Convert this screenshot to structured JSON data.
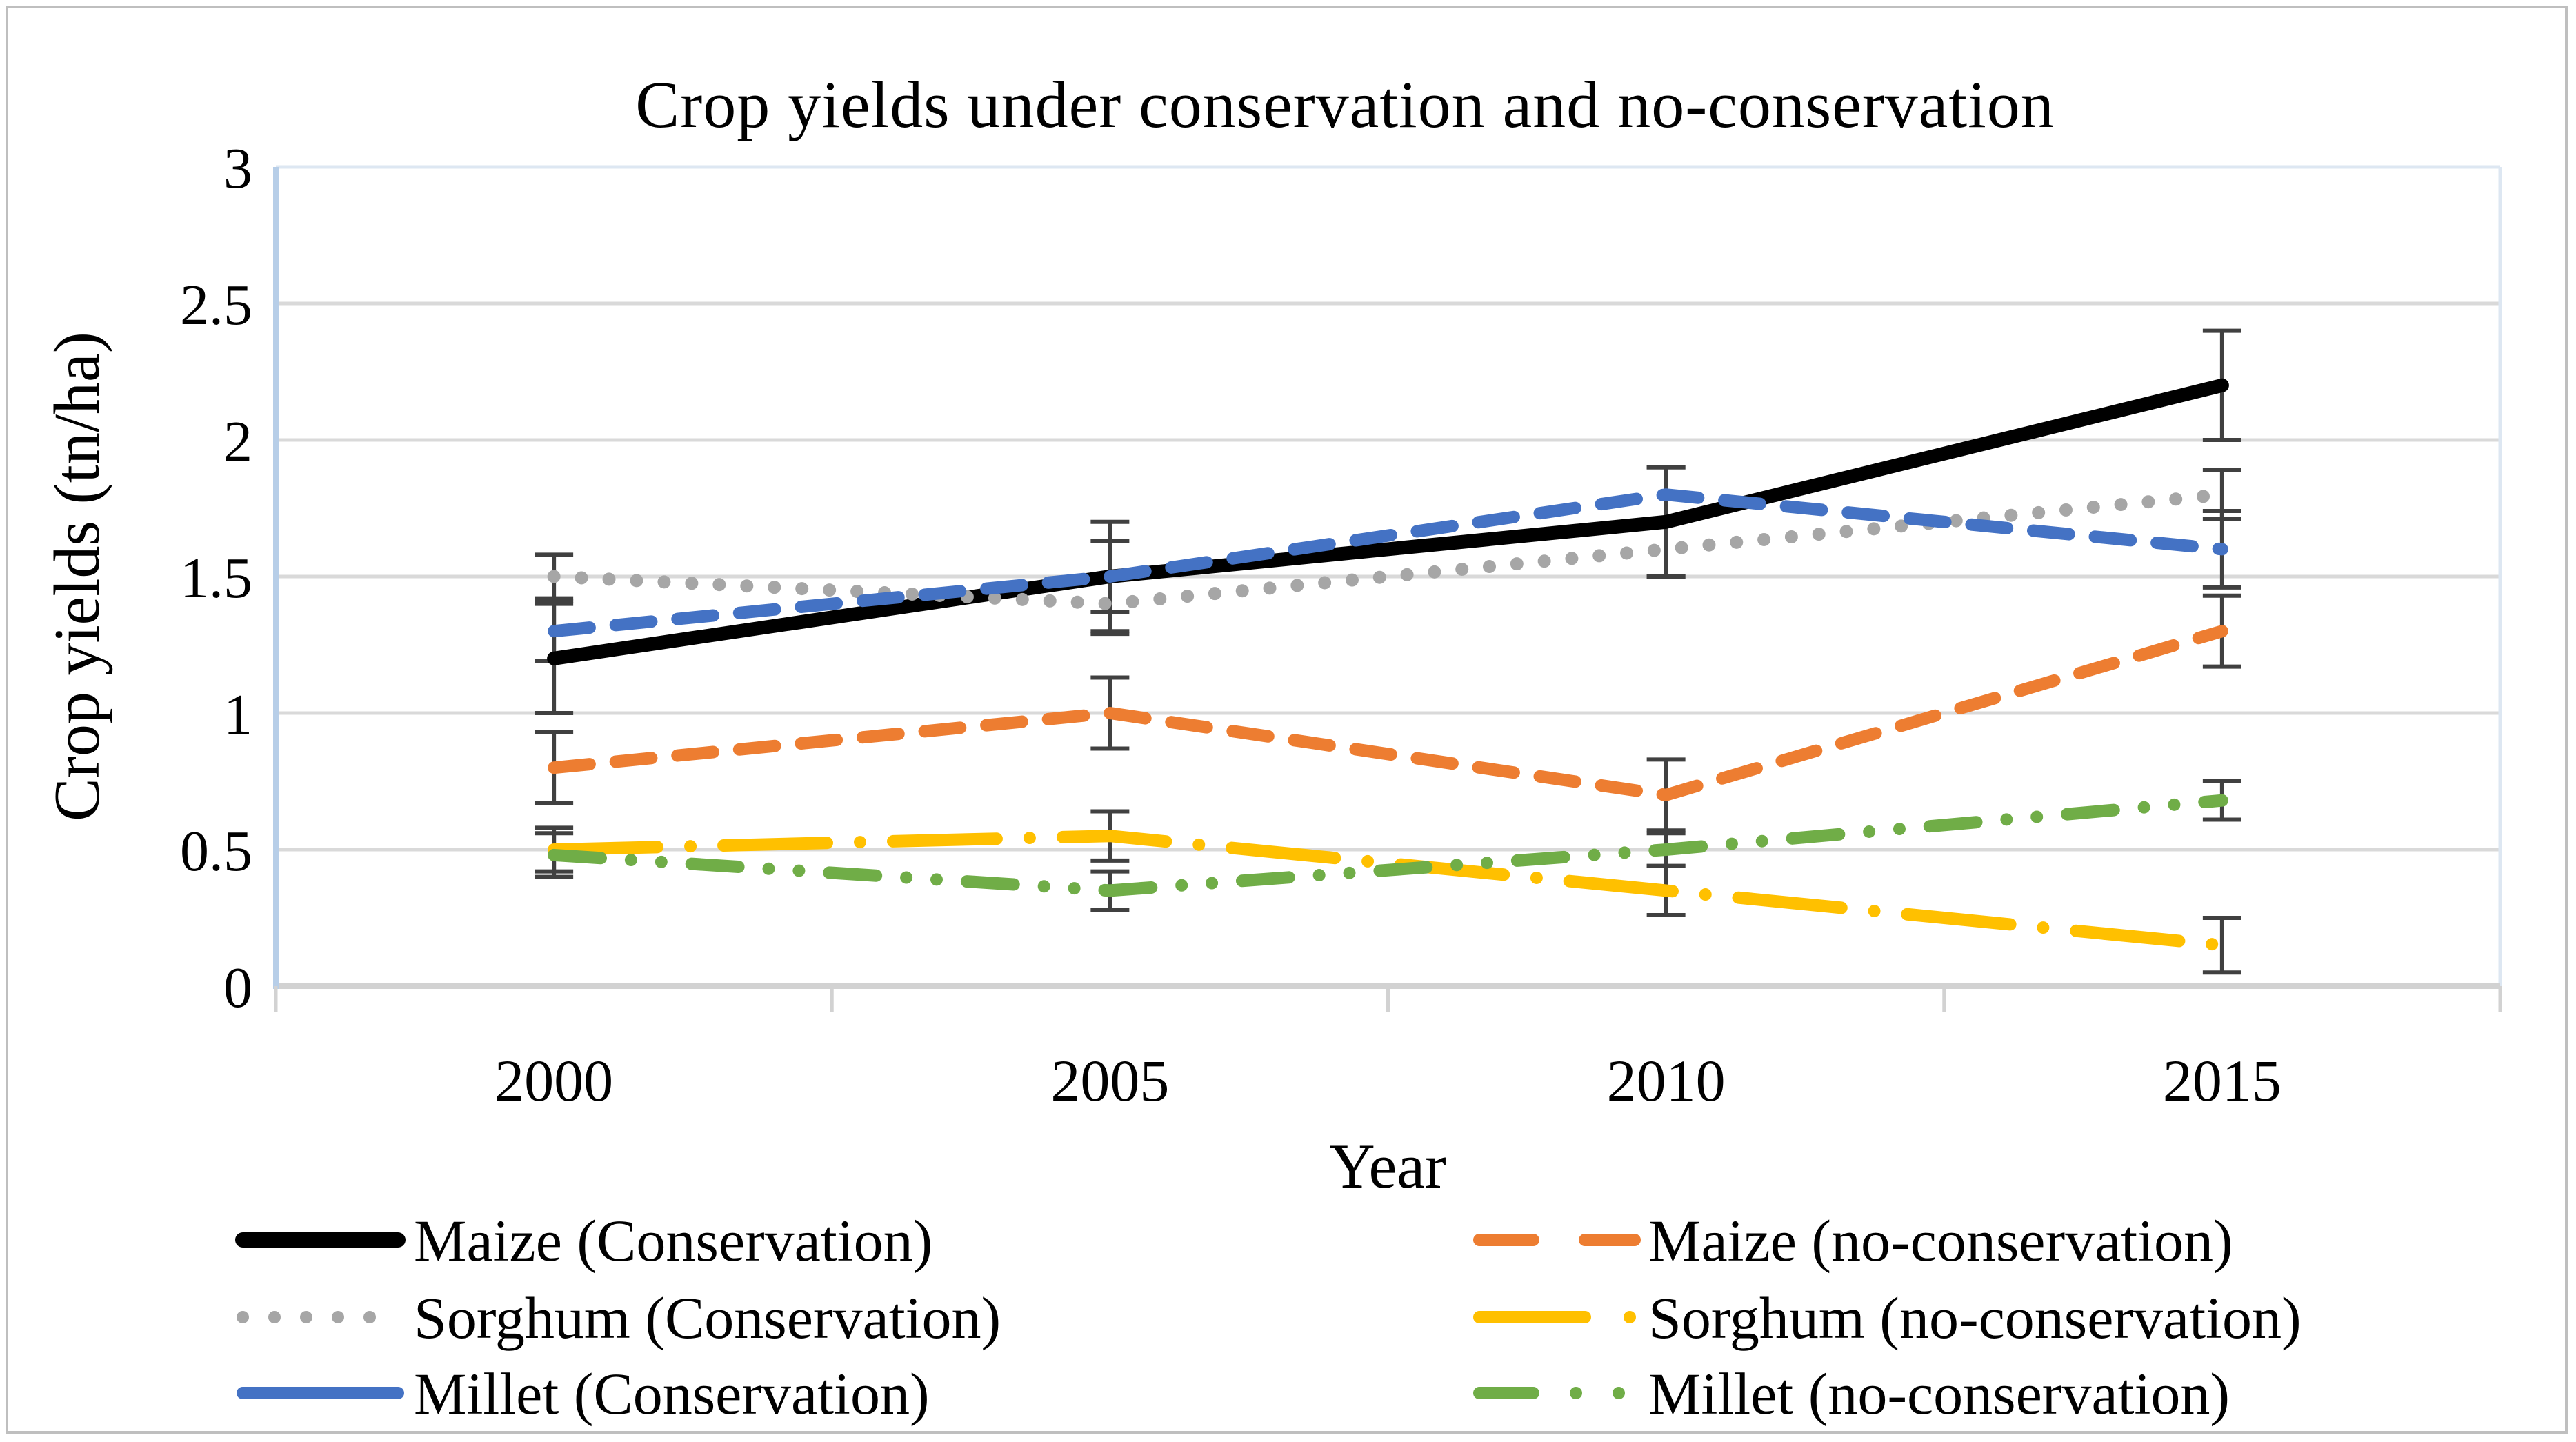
{
  "chart_data": {
    "type": "line",
    "title": "Crop yields under conservation and no-conservation",
    "xlabel": "Year",
    "ylabel": "Crop yields (tn/ha)",
    "categories": [
      "2000",
      "2005",
      "2010",
      "2015"
    ],
    "ylim": [
      0,
      3
    ],
    "ytick_labels": [
      "0",
      "0.5",
      "1",
      "1.5",
      "2",
      "2.5",
      "3"
    ],
    "ytick_values": [
      0,
      0.5,
      1,
      1.5,
      2,
      2.5,
      3
    ],
    "grid": true,
    "legend_position": "bottom-two-columns",
    "error_bars": true,
    "series": [
      {
        "name": "Maize (Conservation)",
        "color": "#000000",
        "style": "solid",
        "width": 20,
        "dash": "",
        "legend_dash": "",
        "legend_col": 0,
        "legend_row": 0,
        "values": [
          1.2,
          1.5,
          1.7,
          2.2
        ],
        "errors": [
          0.2,
          0.2,
          0.2,
          0.2
        ]
      },
      {
        "name": "Maize (no-conservation)",
        "color": "#ED7D31",
        "style": "dash",
        "width": 18,
        "dash": "52 38",
        "legend_dash": "78 75",
        "legend_col": 1,
        "legend_row": 0,
        "values": [
          0.8,
          1.0,
          0.7,
          1.3
        ],
        "errors": [
          0.13,
          0.13,
          0.13,
          0.13
        ]
      },
      {
        "name": "Sorghum (Conservation)",
        "color": "#A6A6A6",
        "style": "dot",
        "width": 19,
        "dash": "0 40",
        "legend_dash": "0 46",
        "legend_col": 0,
        "legend_row": 1,
        "values": [
          1.5,
          1.4,
          1.6,
          1.8
        ],
        "errors": [
          0.08,
          0.11,
          0.1,
          0.09
        ]
      },
      {
        "name": "Sorghum (no-conservation)",
        "color": "#FFC000",
        "style": "long-dash-dot",
        "width": 18,
        "dash": "150 48 0 48",
        "legend_dash": "153 65 0 65",
        "legend_col": 1,
        "legend_row": 1,
        "values": [
          0.5,
          0.55,
          0.35,
          0.15
        ],
        "errors": [
          0.08,
          0.09,
          0.09,
          0.1
        ]
      },
      {
        "name": "Millet (Conservation)",
        "color": "#4472C4",
        "style": "long-dash",
        "width": 18,
        "dash": "52 38",
        "legend_dash": "",
        "legend_col": 0,
        "legend_row": 2,
        "values": [
          1.3,
          1.5,
          1.8,
          1.6
        ],
        "errors": [
          0.11,
          0.13,
          0.1,
          0.14
        ]
      },
      {
        "name": "Millet (no-conservation)",
        "color": "#70AD47",
        "style": "dash-dot-dot",
        "width": 18,
        "dash": "68 44 0 44 0 44",
        "legend_dash": "78 62 0 62 0 62",
        "legend_col": 1,
        "legend_row": 2,
        "values": [
          0.48,
          0.35,
          0.5,
          0.68
        ],
        "errors": [
          0.08,
          0.07,
          0.06,
          0.07
        ]
      }
    ],
    "colors": {
      "gridline": "#D9D9D9",
      "x_axis": "#D2D2D2",
      "y_axis": "#B7CEE8",
      "plot_border": "#DDE7F2",
      "error_bar": "#404040",
      "figure_border": "#BFBFBF",
      "text": "#000000"
    }
  }
}
